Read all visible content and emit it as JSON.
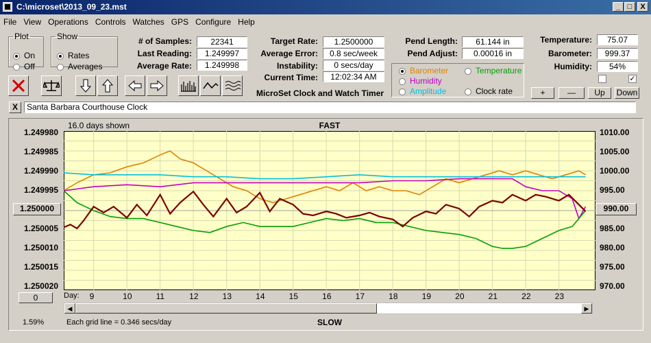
{
  "window": {
    "title": "C:\\microset\\2013_09_23.mst",
    "min": "_",
    "max": "□",
    "close": "X"
  },
  "menu": [
    "File",
    "View",
    "Operations",
    "Controls",
    "Watches",
    "GPS",
    "Configure",
    "Help"
  ],
  "plot": {
    "legend": "Plot",
    "on": "On",
    "off": "Off",
    "selected": "On"
  },
  "show": {
    "legend": "Show",
    "rates": "Rates",
    "averages": "Averages",
    "selected": "Rates"
  },
  "stats": {
    "samples_label": "# of Samples:",
    "samples": "22341",
    "last_label": "Last Reading:",
    "last": "1.249997",
    "avg_label": "Average Rate:",
    "avg": "1.249998"
  },
  "rates": {
    "target_label": "Target Rate:",
    "target": "1.2500000",
    "error_label": "Average Error:",
    "error": "0.8 sec/week",
    "instab_label": "Instability:",
    "instab": "0 secs/day",
    "time_label": "Current Time:",
    "time": "12:02:34 AM"
  },
  "app_caption": "MicroSet Clock and Watch Timer",
  "pend": {
    "length_label": "Pend Length:",
    "length": "61.144 in",
    "adjust_label": "Pend Adjust:",
    "adjust": "0.00016 in"
  },
  "secondary": {
    "options": [
      {
        "label": "Barometer",
        "color": "#e08000",
        "selected": true
      },
      {
        "label": "Temperature",
        "color": "#00a000",
        "selected": false
      },
      {
        "label": "Humidity",
        "color": "#c000c0",
        "selected": false
      },
      {
        "label": "Clock rate",
        "color": "#000000",
        "selected": false
      },
      {
        "label": "Amplitude",
        "color": "#00c0e0",
        "selected": false
      }
    ]
  },
  "env": {
    "temp_label": "Temperature:",
    "temp": "75.07",
    "baro_label": "Barometer:",
    "baro": "999.37",
    "hum_label": "Humidity:",
    "hum": "54%",
    "check1": false,
    "check2": true
  },
  "scale_buttons": {
    "plus": "+",
    "minus": "—",
    "up": "Up",
    "down": "Down"
  },
  "toolbar_icons": [
    "clear-x-icon",
    "balance-scale-icon",
    "arrow-down-icon",
    "arrow-up-icon",
    "arrow-left-icon",
    "arrow-right-icon",
    "bar-chart-icon",
    "wave-icon",
    "multi-wave-icon"
  ],
  "watch": {
    "close": "X",
    "name": "Santa Barbara Courthouse Clock"
  },
  "chart_data": {
    "type": "line",
    "top_label": "FAST",
    "bottom_label": "SLOW",
    "days_shown": "16.0 days shown",
    "grid_note": "Each grid line = 0.346 secs/day",
    "percent": "1.59%",
    "day_prefix": "Day:",
    "left_axis": [
      "1.249980",
      "1.249985",
      "1.249990",
      "1.249995",
      "1.250000",
      "1.250005",
      "1.250010",
      "1.250015",
      "1.250020"
    ],
    "left_center": "1.250000",
    "right_axis": [
      "1010.00",
      "1005.00",
      "1000.00",
      "995.00",
      "990.00",
      "985.00",
      "980.00",
      "975.00",
      "970.00"
    ],
    "right_center": "990.00",
    "left_bottom_btn": "0",
    "x_days": [
      9,
      10,
      11,
      12,
      13,
      14,
      15,
      16,
      17,
      18,
      19,
      20,
      21,
      22,
      23
    ],
    "xlim": [
      8.1,
      24.1
    ],
    "ylim_left": [
      1.24998,
      1.25002
    ],
    "series": [
      {
        "name": "Barometer",
        "color": "#e08000",
        "x": [
          8.1,
          8.5,
          9,
          9.5,
          10,
          10.5,
          11,
          11.3,
          11.6,
          12,
          12.4,
          12.8,
          13.2,
          13.6,
          14,
          14.4,
          14.8,
          15.2,
          15.6,
          16,
          16.4,
          16.8,
          17.2,
          17.6,
          18,
          18.4,
          18.8,
          19.2,
          19.6,
          20,
          20.4,
          20.8,
          21.2,
          21.6,
          22,
          22.4,
          22.8,
          23.2,
          23.6,
          23.8
        ],
        "y": [
          995,
          997,
          999,
          999.5,
          1001,
          1002,
          1004,
          1005,
          1003,
          1002,
          1000,
          998,
          996,
          995,
          993,
          992,
          993,
          994,
          995,
          996,
          995,
          997,
          995,
          996,
          995,
          995,
          994,
          996,
          998,
          997,
          998,
          999,
          1000,
          999,
          1000,
          999,
          998,
          999,
          1000,
          999
        ]
      },
      {
        "name": "Humidity",
        "color": "#c000c0",
        "x": [
          8.1,
          9,
          10,
          11,
          12,
          13,
          14,
          15,
          16,
          17,
          18,
          19,
          20,
          21,
          21.6,
          22,
          22.5,
          23,
          23.4,
          23.6,
          23.8
        ],
        "y": [
          995,
          996,
          996.5,
          996,
          997,
          997,
          997,
          997,
          997,
          997,
          997.5,
          997.5,
          998,
          998,
          998,
          996,
          995,
          995,
          993,
          988,
          991
        ]
      },
      {
        "name": "Amplitude",
        "color": "#00c0e0",
        "x": [
          8.1,
          9,
          10,
          11,
          12,
          13,
          14,
          15,
          16,
          17,
          18,
          19,
          20,
          21,
          22,
          23,
          23.8
        ],
        "y": [
          999.5,
          999,
          999,
          999,
          998.5,
          998.5,
          998,
          998,
          998.5,
          999,
          998.5,
          998.5,
          998.5,
          998.5,
          998.5,
          998.5,
          998.5
        ]
      },
      {
        "name": "Temperature",
        "color": "#00a000",
        "x": [
          8.1,
          8.5,
          9,
          9.5,
          10,
          10.5,
          11,
          11.5,
          12,
          12.5,
          13,
          13.5,
          14,
          14.5,
          15,
          15.5,
          16,
          16.5,
          17,
          17.5,
          18,
          18.5,
          19,
          19.5,
          20,
          20.5,
          21,
          21.3,
          21.6,
          22,
          22.5,
          23,
          23.4,
          23.8
        ],
        "y": [
          995,
          992,
          990,
          988.5,
          988,
          988,
          987,
          986,
          985,
          984.5,
          986,
          987,
          986,
          986,
          986,
          987,
          988,
          987.5,
          988,
          987,
          987,
          986,
          985,
          984.5,
          984,
          983,
          981,
          980.5,
          980.5,
          981,
          983,
          985,
          986,
          990
        ]
      },
      {
        "name": "Clock rate",
        "color": "#7a0000",
        "x": [
          8.1,
          8.3,
          8.5,
          8.7,
          9,
          9.3,
          9.6,
          10,
          10.3,
          10.6,
          11,
          11.3,
          11.6,
          12,
          12.3,
          12.6,
          13,
          13.3,
          13.6,
          14,
          14.3,
          14.6,
          15,
          15.3,
          15.6,
          16,
          16.3,
          16.6,
          17,
          17.3,
          17.6,
          18,
          18.3,
          18.6,
          19,
          19.3,
          19.6,
          20,
          20.3,
          20.6,
          21,
          21.3,
          21.6,
          22,
          22.3,
          22.6,
          23,
          23.3,
          23.6,
          23.8
        ],
        "y": [
          1.2500042,
          1.2500035,
          1.2500045,
          1.2500025,
          1.249999,
          1.2500005,
          1.249999,
          1.2500018,
          1.2499985,
          1.2500012,
          1.249996,
          1.2500008,
          1.249998,
          1.2499952,
          1.2499985,
          1.2500015,
          1.249997,
          1.2500005,
          1.249999,
          1.2499955,
          1.2500002,
          1.249997,
          1.2499985,
          1.2500008,
          1.2500012,
          1.2500002,
          1.2500008,
          1.2500018,
          1.2500012,
          1.2500005,
          1.2500015,
          1.2500022,
          1.250004,
          1.2500018,
          1.2500002,
          1.2500008,
          1.2499985,
          1.2499995,
          1.2500015,
          1.249999,
          1.2499975,
          1.249998,
          1.249996,
          1.2499975,
          1.249996,
          1.2499965,
          1.2499975,
          1.249996,
          1.2499985,
          1.2500002
        ]
      }
    ]
  }
}
